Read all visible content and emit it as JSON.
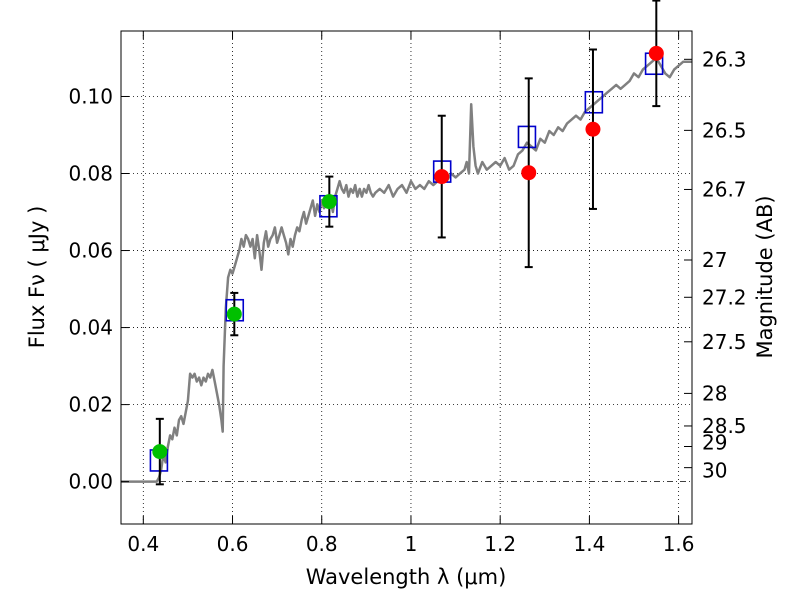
{
  "chart_data": {
    "type": "scatter",
    "xlabel": "Wavelength  λ (μm)",
    "ylabel": "Flux  Fν  ( μJy )",
    "y2label": "Magnitude (AB)",
    "xlim": [
      0.35,
      1.63
    ],
    "ylim": [
      -0.011,
      0.117
    ],
    "grid": true,
    "xticks": [
      {
        "value": 0.4,
        "label": "0.4"
      },
      {
        "value": 0.6,
        "label": "0.6"
      },
      {
        "value": 0.8,
        "label": "0.8"
      },
      {
        "value": 1.0,
        "label": "1"
      },
      {
        "value": 1.2,
        "label": "1.2"
      },
      {
        "value": 1.4,
        "label": "1.4"
      },
      {
        "value": 1.6,
        "label": "1.6"
      }
    ],
    "yticks": [
      {
        "value": 0.0,
        "label": "0.00"
      },
      {
        "value": 0.02,
        "label": "0.02"
      },
      {
        "value": 0.04,
        "label": "0.04"
      },
      {
        "value": 0.06,
        "label": "0.06"
      },
      {
        "value": 0.08,
        "label": "0.08"
      },
      {
        "value": 0.1,
        "label": "0.10"
      }
    ],
    "magticks": [
      {
        "mag": 26.3,
        "label": "26.3"
      },
      {
        "mag": 26.5,
        "label": "26.5"
      },
      {
        "mag": 26.7,
        "label": "26.7"
      },
      {
        "mag": 27,
        "label": "27"
      },
      {
        "mag": 27.2,
        "label": "27.2"
      },
      {
        "mag": 27.5,
        "label": "27.5"
      },
      {
        "mag": 28,
        "label": "28"
      },
      {
        "mag": 28.5,
        "label": "28.5"
      },
      {
        "mag": 29,
        "label": "29"
      },
      {
        "mag": 30,
        "label": "30"
      }
    ],
    "colors": {
      "model": "#808080",
      "optical": "#00c000",
      "nir": "#ff0000",
      "model_box": "#0000cc",
      "errorbar": "#000000"
    },
    "series": [
      {
        "kind": "line",
        "color": "#808080",
        "points": [
          [
            0.35,
            0.0
          ],
          [
            0.4,
            0.0
          ],
          [
            0.43,
            0.0
          ],
          [
            0.435,
            0.001
          ],
          [
            0.44,
            0.003
          ],
          [
            0.445,
            0.007
          ],
          [
            0.45,
            0.005
          ],
          [
            0.455,
            0.009
          ],
          [
            0.46,
            0.012
          ],
          [
            0.465,
            0.011
          ],
          [
            0.47,
            0.014
          ],
          [
            0.475,
            0.012
          ],
          [
            0.48,
            0.016
          ],
          [
            0.485,
            0.017
          ],
          [
            0.49,
            0.015
          ],
          [
            0.495,
            0.018
          ],
          [
            0.5,
            0.021
          ],
          [
            0.505,
            0.028
          ],
          [
            0.51,
            0.027
          ],
          [
            0.515,
            0.028
          ],
          [
            0.52,
            0.026
          ],
          [
            0.525,
            0.027
          ],
          [
            0.53,
            0.025
          ],
          [
            0.535,
            0.027
          ],
          [
            0.54,
            0.026
          ],
          [
            0.545,
            0.028
          ],
          [
            0.55,
            0.027
          ],
          [
            0.555,
            0.029
          ],
          [
            0.56,
            0.026
          ],
          [
            0.565,
            0.023
          ],
          [
            0.57,
            0.02
          ],
          [
            0.575,
            0.016
          ],
          [
            0.578,
            0.013
          ],
          [
            0.58,
            0.03
          ],
          [
            0.585,
            0.045
          ],
          [
            0.59,
            0.053
          ],
          [
            0.595,
            0.055
          ],
          [
            0.6,
            0.054
          ],
          [
            0.605,
            0.056
          ],
          [
            0.61,
            0.058
          ],
          [
            0.615,
            0.06
          ],
          [
            0.62,
            0.063
          ],
          [
            0.625,
            0.061
          ],
          [
            0.63,
            0.064
          ],
          [
            0.635,
            0.063
          ],
          [
            0.64,
            0.061
          ],
          [
            0.645,
            0.063
          ],
          [
            0.65,
            0.058
          ],
          [
            0.655,
            0.064
          ],
          [
            0.66,
            0.06
          ],
          [
            0.665,
            0.055
          ],
          [
            0.67,
            0.062
          ],
          [
            0.675,
            0.065
          ],
          [
            0.68,
            0.061
          ],
          [
            0.685,
            0.063
          ],
          [
            0.69,
            0.064
          ],
          [
            0.695,
            0.066
          ],
          [
            0.7,
            0.062
          ],
          [
            0.705,
            0.064
          ],
          [
            0.71,
            0.066
          ],
          [
            0.715,
            0.064
          ],
          [
            0.72,
            0.062
          ],
          [
            0.725,
            0.059
          ],
          [
            0.73,
            0.063
          ],
          [
            0.735,
            0.061
          ],
          [
            0.74,
            0.064
          ],
          [
            0.745,
            0.066
          ],
          [
            0.75,
            0.065
          ],
          [
            0.755,
            0.068
          ],
          [
            0.76,
            0.07
          ],
          [
            0.765,
            0.067
          ],
          [
            0.77,
            0.069
          ],
          [
            0.775,
            0.071
          ],
          [
            0.78,
            0.073
          ],
          [
            0.785,
            0.069
          ],
          [
            0.79,
            0.072
          ],
          [
            0.795,
            0.07
          ],
          [
            0.8,
            0.073
          ],
          [
            0.805,
            0.071
          ],
          [
            0.81,
            0.072
          ],
          [
            0.815,
            0.074
          ],
          [
            0.82,
            0.073
          ],
          [
            0.825,
            0.07
          ],
          [
            0.83,
            0.074
          ],
          [
            0.835,
            0.076
          ],
          [
            0.84,
            0.078
          ],
          [
            0.845,
            0.076
          ],
          [
            0.85,
            0.075
          ],
          [
            0.855,
            0.077
          ],
          [
            0.86,
            0.074
          ],
          [
            0.865,
            0.076
          ],
          [
            0.87,
            0.075
          ],
          [
            0.875,
            0.077
          ],
          [
            0.88,
            0.074
          ],
          [
            0.885,
            0.076
          ],
          [
            0.89,
            0.074
          ],
          [
            0.895,
            0.076
          ],
          [
            0.9,
            0.075
          ],
          [
            0.905,
            0.077
          ],
          [
            0.91,
            0.075
          ],
          [
            0.915,
            0.074
          ],
          [
            0.92,
            0.075
          ],
          [
            0.93,
            0.076
          ],
          [
            0.94,
            0.075
          ],
          [
            0.95,
            0.077
          ],
          [
            0.96,
            0.074
          ],
          [
            0.97,
            0.076
          ],
          [
            0.98,
            0.077
          ],
          [
            0.99,
            0.075
          ],
          [
            1.0,
            0.078
          ],
          [
            1.01,
            0.076
          ],
          [
            1.02,
            0.077
          ],
          [
            1.03,
            0.076
          ],
          [
            1.04,
            0.078
          ],
          [
            1.05,
            0.077
          ],
          [
            1.06,
            0.078
          ],
          [
            1.07,
            0.079
          ],
          [
            1.08,
            0.078
          ],
          [
            1.09,
            0.08
          ],
          [
            1.1,
            0.079
          ],
          [
            1.11,
            0.08
          ],
          [
            1.12,
            0.081
          ],
          [
            1.125,
            0.083
          ],
          [
            1.13,
            0.08
          ],
          [
            1.135,
            0.098
          ],
          [
            1.14,
            0.087
          ],
          [
            1.145,
            0.082
          ],
          [
            1.15,
            0.08
          ],
          [
            1.16,
            0.083
          ],
          [
            1.17,
            0.081
          ],
          [
            1.18,
            0.082
          ],
          [
            1.19,
            0.083
          ],
          [
            1.2,
            0.082
          ],
          [
            1.21,
            0.084
          ],
          [
            1.22,
            0.081
          ],
          [
            1.23,
            0.082
          ],
          [
            1.24,
            0.085
          ],
          [
            1.25,
            0.086
          ],
          [
            1.26,
            0.088
          ],
          [
            1.27,
            0.087
          ],
          [
            1.28,
            0.086
          ],
          [
            1.29,
            0.089
          ],
          [
            1.3,
            0.088
          ],
          [
            1.31,
            0.091
          ],
          [
            1.32,
            0.09
          ],
          [
            1.33,
            0.092
          ],
          [
            1.34,
            0.091
          ],
          [
            1.35,
            0.093
          ],
          [
            1.36,
            0.094
          ],
          [
            1.37,
            0.095
          ],
          [
            1.38,
            0.094
          ],
          [
            1.39,
            0.096
          ],
          [
            1.4,
            0.097
          ],
          [
            1.41,
            0.098
          ],
          [
            1.42,
            0.099
          ],
          [
            1.43,
            0.1
          ],
          [
            1.44,
            0.101
          ],
          [
            1.45,
            0.102
          ],
          [
            1.46,
            0.103
          ],
          [
            1.47,
            0.102
          ],
          [
            1.48,
            0.103
          ],
          [
            1.49,
            0.104
          ],
          [
            1.5,
            0.106
          ],
          [
            1.51,
            0.105
          ],
          [
            1.52,
            0.107
          ],
          [
            1.53,
            0.108
          ],
          [
            1.54,
            0.109
          ],
          [
            1.55,
            0.11
          ],
          [
            1.56,
            0.108
          ],
          [
            1.57,
            0.106
          ],
          [
            1.58,
            0.105
          ],
          [
            1.59,
            0.107
          ],
          [
            1.6,
            0.108
          ],
          [
            1.61,
            0.109
          ],
          [
            1.63,
            0.109
          ]
        ]
      },
      {
        "kind": "model_box",
        "color": "#0000cc",
        "points": [
          [
            0.435,
            0.0055
          ],
          [
            0.605,
            0.0445
          ],
          [
            0.815,
            0.0715
          ],
          [
            1.07,
            0.0805
          ],
          [
            1.26,
            0.0895
          ],
          [
            1.41,
            0.0985
          ],
          [
            1.545,
            0.1085
          ]
        ]
      },
      {
        "kind": "dot",
        "color": "#00c000",
        "points": [
          {
            "x": 0.437,
            "y": 0.0078,
            "err": 0.0085
          },
          {
            "x": 0.604,
            "y": 0.0435,
            "err": 0.0055
          },
          {
            "x": 0.817,
            "y": 0.0727,
            "err": 0.0065
          }
        ]
      },
      {
        "kind": "dot",
        "color": "#ff0000",
        "points": [
          {
            "x": 1.069,
            "y": 0.0792,
            "err": 0.0158
          },
          {
            "x": 1.264,
            "y": 0.0802,
            "err": 0.0245
          },
          {
            "x": 1.408,
            "y": 0.0915,
            "err": 0.0207
          },
          {
            "x": 1.55,
            "y": 0.1112,
            "err": 0.0137
          }
        ]
      }
    ]
  }
}
